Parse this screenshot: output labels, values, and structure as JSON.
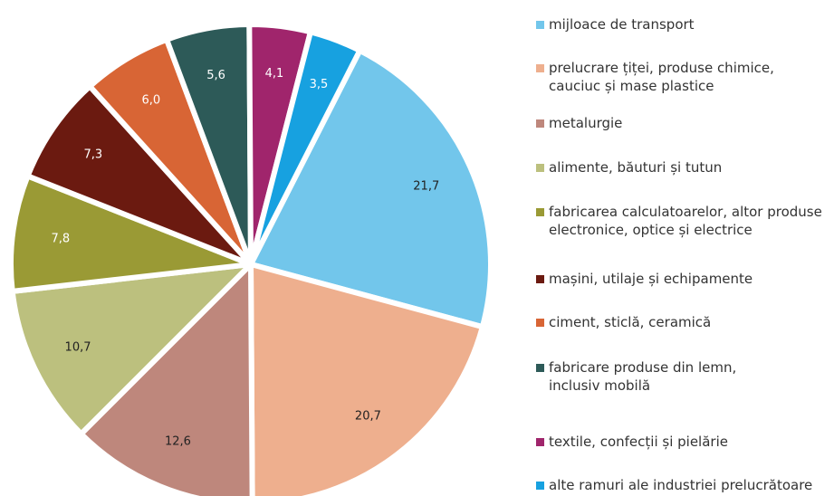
{
  "chart_data": {
    "type": "pie",
    "categories": [
      "mijloace de transport",
      "prelucrare țiței, produse chimice,\ncauciuc și mase plastice",
      "metalurgie",
      "alimente, băuturi și tutun",
      "fabricarea calculatoarelor, altor produse\nelectronice, optice și electrice",
      "mașini, utilaje și echipamente",
      "ciment, sticlă, ceramică",
      "fabricare produse din lemn,\ninclusiv mobilă",
      "textile, confecții și pielărie",
      "alte ramuri ale industriei prelucrătoare"
    ],
    "values": [
      21.7,
      20.7,
      12.6,
      10.7,
      7.8,
      7.3,
      6.0,
      5.6,
      4.1,
      3.5
    ],
    "value_labels": [
      "21,7",
      "20,7",
      "12,6",
      "10,7",
      "7,8",
      "7,3",
      "6,0",
      "5,6",
      "4,1",
      "3,5"
    ],
    "colors": [
      "#72c6eb",
      "#eeaf8e",
      "#be877c",
      "#bcc07e",
      "#9a9a35",
      "#6b1a10",
      "#d86535",
      "#2d5a58",
      "#a0256c",
      "#17a1e0"
    ]
  }
}
